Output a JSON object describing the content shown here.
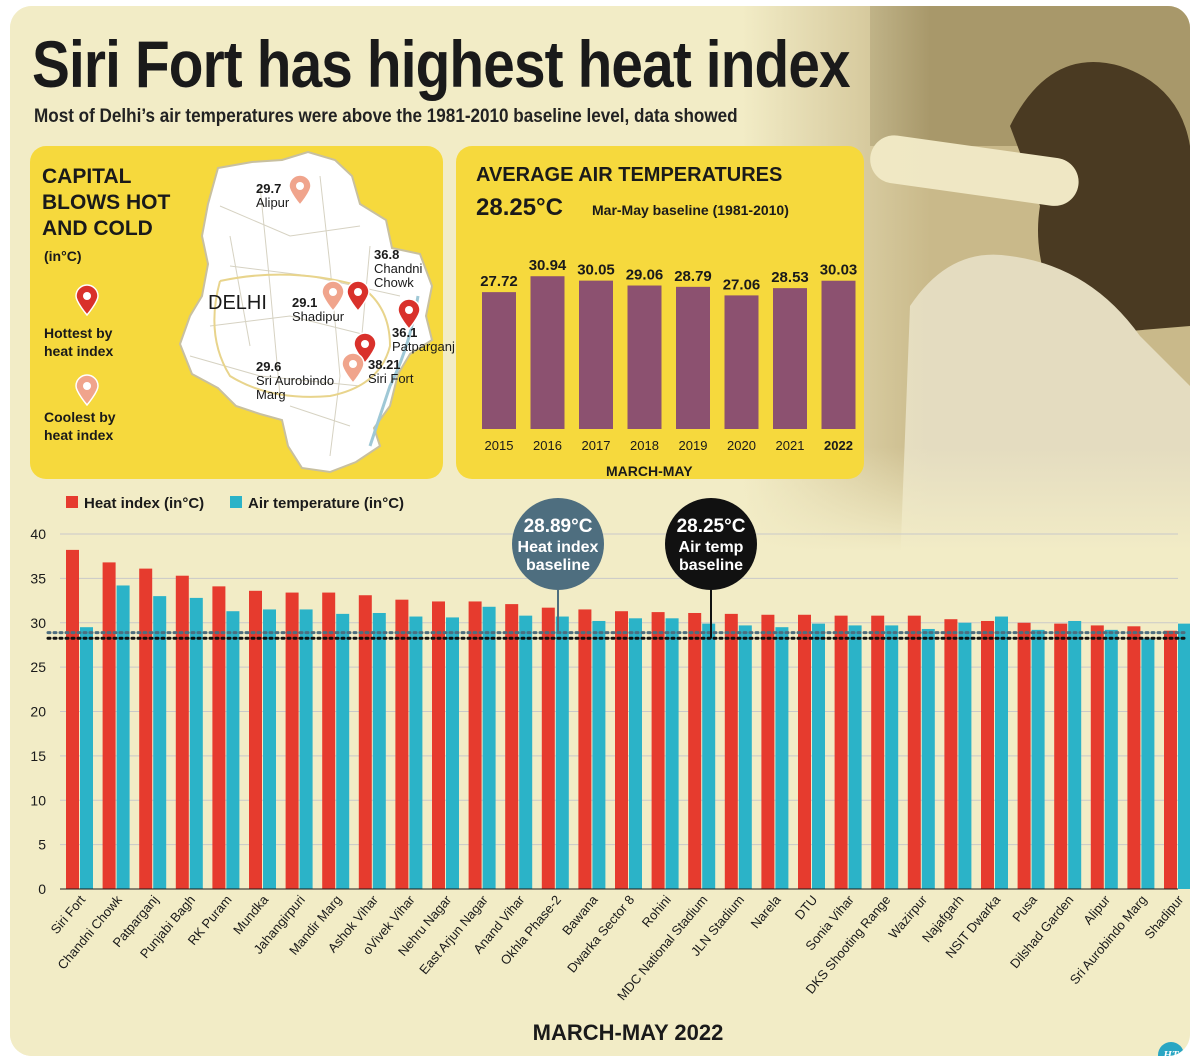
{
  "headline": "Siri Fort has highest heat index",
  "subhead": "Most of Delhi’s air temperatures were above the 1981-2010 baseline level, data showed",
  "colors": {
    "heat_index": "#e63b2e",
    "air_temp": "#2bb3c8",
    "yearly_bar": "#8c5170",
    "panel": "#f6d93d",
    "hot_pin": "#d9312b",
    "cool_pin": "#f0a48c",
    "heat_baseline_bubble": "#4e6e7f",
    "air_baseline_bubble": "#111111"
  },
  "map_panel": {
    "title": "CAPITAL BLOWS HOT AND COLD",
    "unit": "(in°C)",
    "region_label": "DELHI",
    "legend": [
      {
        "icon": "hot-pin-icon",
        "label": "Hottest by heat index"
      },
      {
        "icon": "cool-pin-icon",
        "label": "Coolest by heat index"
      }
    ],
    "locations": [
      {
        "value": "29.7",
        "name": "Alipur",
        "kind": "cool"
      },
      {
        "value": "36.8",
        "name": "Chandni Chowk",
        "kind": "hot"
      },
      {
        "value": "29.1",
        "name": "Shadipur",
        "kind": "cool"
      },
      {
        "value": "36.1",
        "name": "Patparganj",
        "kind": "hot"
      },
      {
        "value": "29.6",
        "name": "Sri Aurobindo Marg",
        "kind": "cool"
      },
      {
        "value": "38.21",
        "name": "Siri Fort",
        "kind": "hot"
      }
    ]
  },
  "chart_data": [
    {
      "type": "bar",
      "title": "AVERAGE AIR TEMPERATURES",
      "baseline_value": "28.25°C",
      "baseline_note": "Mar-May baseline (1981-2010)",
      "xlabel": "MARCH-MAY",
      "categories": [
        "2015",
        "2016",
        "2017",
        "2018",
        "2019",
        "2020",
        "2021",
        "2022"
      ],
      "values": [
        27.72,
        30.94,
        30.05,
        29.06,
        28.79,
        27.06,
        28.53,
        30.03
      ],
      "value_labels": [
        "27.72",
        "30.94",
        "30.05",
        "29.06",
        "28.79",
        "27.06",
        "28.53",
        "30.03"
      ],
      "highlight_category": "2022",
      "ylim": [
        0,
        32
      ]
    },
    {
      "type": "bar",
      "xlabel": "MARCH-MAY 2022",
      "ylim": [
        0,
        40
      ],
      "yticks": [
        0,
        5,
        10,
        15,
        20,
        25,
        30,
        35,
        40
      ],
      "grid": true,
      "legend_position": "top-left",
      "categories": [
        "Siri Fort",
        "Chandni Chowk",
        "Patparganj",
        "Punjabi Bagh",
        "RK Puram",
        "Mundka",
        "Jahangirpuri",
        "Mandir Marg",
        "Ashok Vihar",
        "oVivek Vihar",
        "Nehru Nagar",
        "East Arjun Nagar",
        "Anand Vihar",
        "Okhla Phase-2",
        "Bawana",
        "Dwarka Sector 8",
        "Rohini",
        "MDC National Stadium",
        "JLN Stadium",
        "Narela",
        "DTU",
        "Sonia Vihar",
        "DKS Shooting Range",
        "Wazirpur",
        "Najafgarh",
        "NSIT Dwarka",
        "Pusa",
        "Dilshad Garden",
        "Alipur",
        "Sri Aurobindo Marg",
        "Shadipur"
      ],
      "series": [
        {
          "name": "Heat index (in°C)",
          "values": [
            38.21,
            36.8,
            36.1,
            35.3,
            34.1,
            33.6,
            33.4,
            33.4,
            33.1,
            32.6,
            32.4,
            32.4,
            32.1,
            31.7,
            31.5,
            31.3,
            31.2,
            31.1,
            31.0,
            30.9,
            30.9,
            30.8,
            30.8,
            30.8,
            30.4,
            30.2,
            30.0,
            29.9,
            29.7,
            29.6,
            29.1
          ]
        },
        {
          "name": "Air temperature  (in°C)",
          "values": [
            29.5,
            34.2,
            33.0,
            32.8,
            31.3,
            31.5,
            31.5,
            31.0,
            31.1,
            30.7,
            30.6,
            31.8,
            30.8,
            30.7,
            30.2,
            30.5,
            30.5,
            29.9,
            29.7,
            29.5,
            29.9,
            29.7,
            29.7,
            29.3,
            30.0,
            30.7,
            29.2,
            30.2,
            29.2,
            28.2,
            29.9
          ]
        }
      ],
      "baselines": [
        {
          "value": 28.89,
          "label_value": "28.89°C",
          "label_text": "Heat index baseline",
          "label_lines": [
            "Heat index",
            "baseline"
          ]
        },
        {
          "value": 28.25,
          "label_value": "28.25°C",
          "label_text": "Air temp baseline",
          "label_lines": [
            "Air temp",
            "baseline"
          ]
        }
      ]
    }
  ],
  "brand": "HT"
}
